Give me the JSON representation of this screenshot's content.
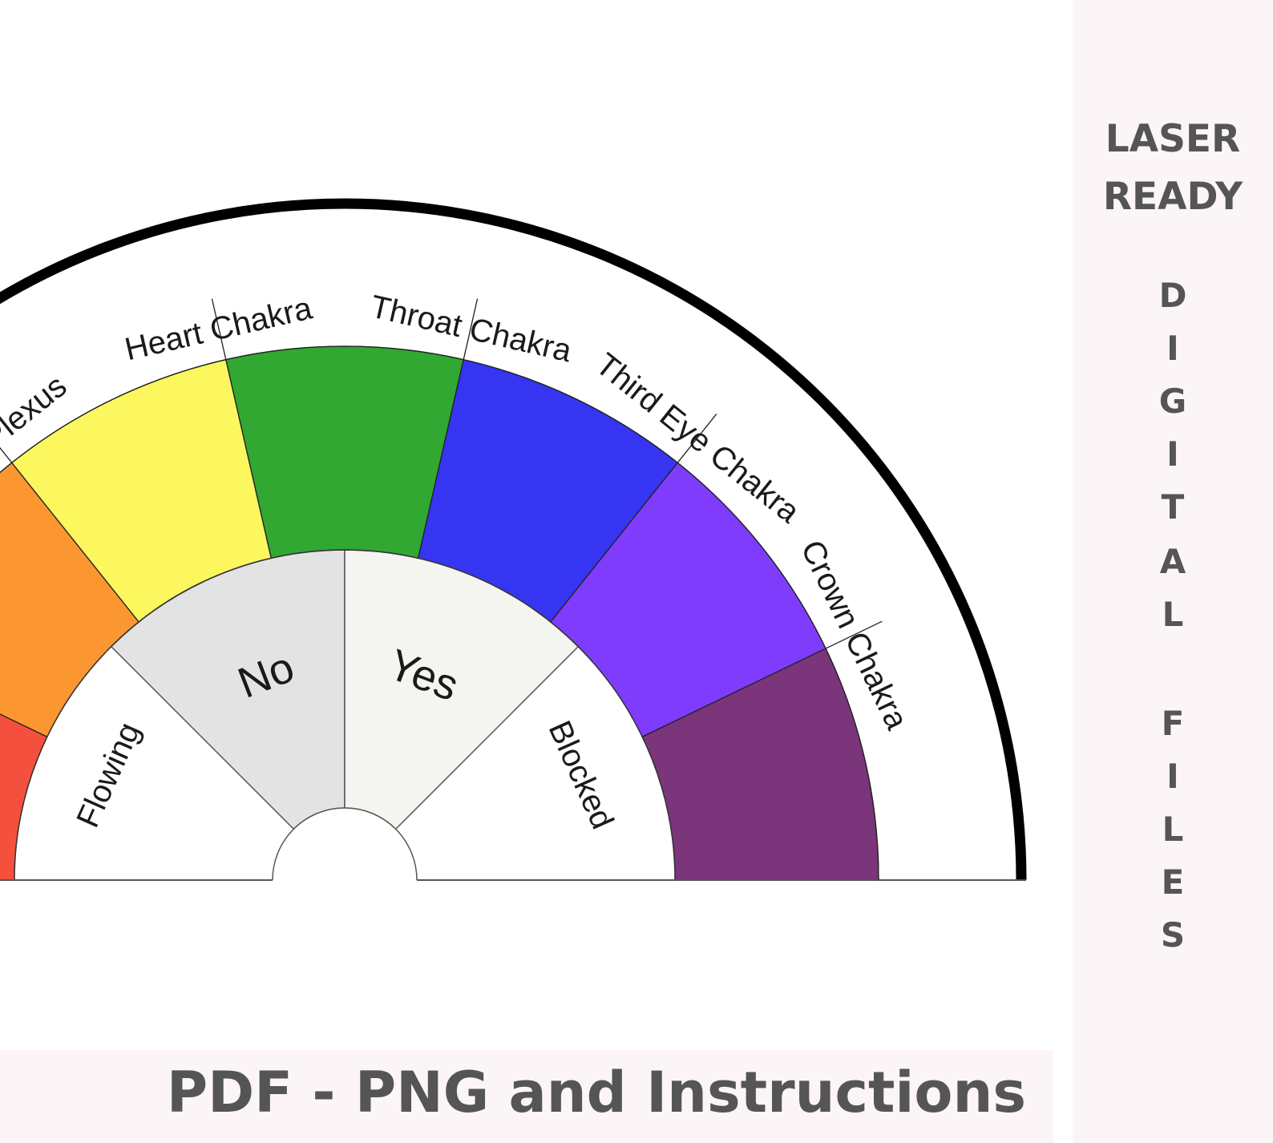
{
  "pendulum_chart": {
    "outer_labels": [
      "Solar Plexus",
      "Heart Chakra",
      "Throat Chakra",
      "Third Eye Chakra",
      "Crown Chakra"
    ],
    "color_segments": [
      {
        "name": "root",
        "color": "#f5503e"
      },
      {
        "name": "sacral",
        "color": "#fb9630"
      },
      {
        "name": "solar-plexus",
        "color": "#fcf75e"
      },
      {
        "name": "heart",
        "color": "#30a832"
      },
      {
        "name": "throat",
        "color": "#3635f2"
      },
      {
        "name": "third-eye",
        "color": "#7f3cfd"
      },
      {
        "name": "crown",
        "color": "#7a357b"
      }
    ],
    "inner_labels": {
      "flowing": "Flowing",
      "no": "No",
      "yes": "Yes",
      "blocked": "Blocked"
    },
    "inner_colors": {
      "outer_white": "#ffffff",
      "no": "#e4e3e4",
      "yes": "#f4f4f1"
    }
  },
  "sidebar": {
    "title_line1": "LASER",
    "title_line2": "READY",
    "vertical_letters": [
      "D",
      "I",
      "G",
      "I",
      "T",
      "A",
      "L",
      "F",
      "I",
      "L",
      "E",
      "S"
    ]
  },
  "footer": {
    "text": "PDF - PNG and Instructions"
  },
  "colors": {
    "band_background": "#fbf5f8",
    "text_gray": "#555555"
  }
}
